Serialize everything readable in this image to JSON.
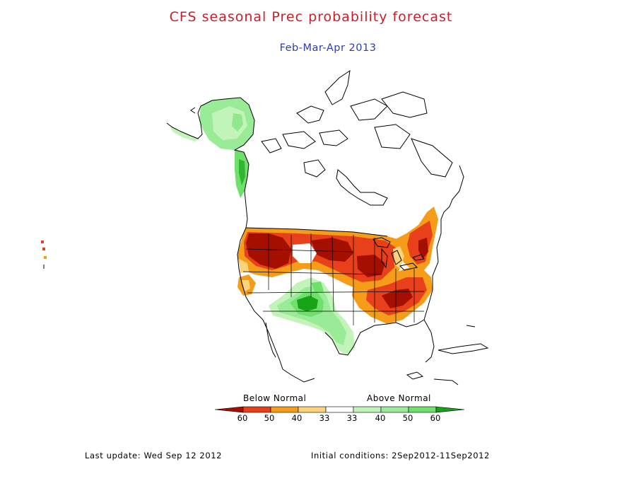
{
  "title": "CFS seasonal Prec probability forecast",
  "subtitle": "Feb-Mar-Apr 2013",
  "legend": {
    "below_label": "Below Normal",
    "above_label": "Above Normal",
    "ticks": [
      "60",
      "50",
      "40",
      "33",
      "33",
      "40",
      "50",
      "60"
    ],
    "colors": {
      "below_60": "#a50f00",
      "below_50": "#e8401a",
      "below_40": "#f59c18",
      "below_33": "#fad37a",
      "neutral": "#ffffff",
      "above_33": "#c2f3b8",
      "above_40": "#9aeb98",
      "above_50": "#6fe06c",
      "above_60": "#18a418"
    }
  },
  "footer": {
    "last_update": "Last update: Wed Sep 12 2012",
    "initial_conditions": "Initial conditions: 2Sep2012-11Sep2012"
  }
}
